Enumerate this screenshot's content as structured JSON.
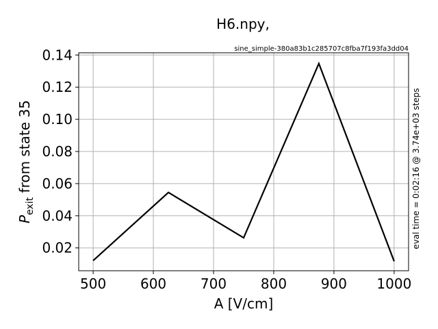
{
  "chart_data": {
    "type": "line",
    "title": "H6.npy,",
    "subtitle": "sine_simple-380a83b1c285707c8fba7f193fa3dd04",
    "xlabel": "A [V/cm]",
    "ylabel_main": "P",
    "ylabel_sub": "exit",
    "ylabel_rest": " from state 35",
    "right_label": "eval time = 0:02:16 @ 3.74e+03 steps",
    "xlim": [
      476,
      1024
    ],
    "ylim": [
      0.0058,
      0.1414
    ],
    "xticks": [
      500,
      600,
      700,
      800,
      900,
      1000
    ],
    "xtick_labels": [
      "500",
      "600",
      "700",
      "800",
      "900",
      "1000"
    ],
    "yticks": [
      0.02,
      0.04,
      0.06,
      0.08,
      0.1,
      0.12,
      0.14
    ],
    "ytick_labels": [
      "0.02",
      "0.04",
      "0.06",
      "0.08",
      "0.10",
      "0.12",
      "0.14"
    ],
    "grid": true,
    "line_color": "#000000",
    "grid_color": "#b0b0b0",
    "series": [
      {
        "x": [
          500,
          625,
          750,
          875,
          1000
        ],
        "values": [
          0.0121,
          0.0545,
          0.0263,
          0.1347,
          0.0117
        ]
      }
    ]
  }
}
